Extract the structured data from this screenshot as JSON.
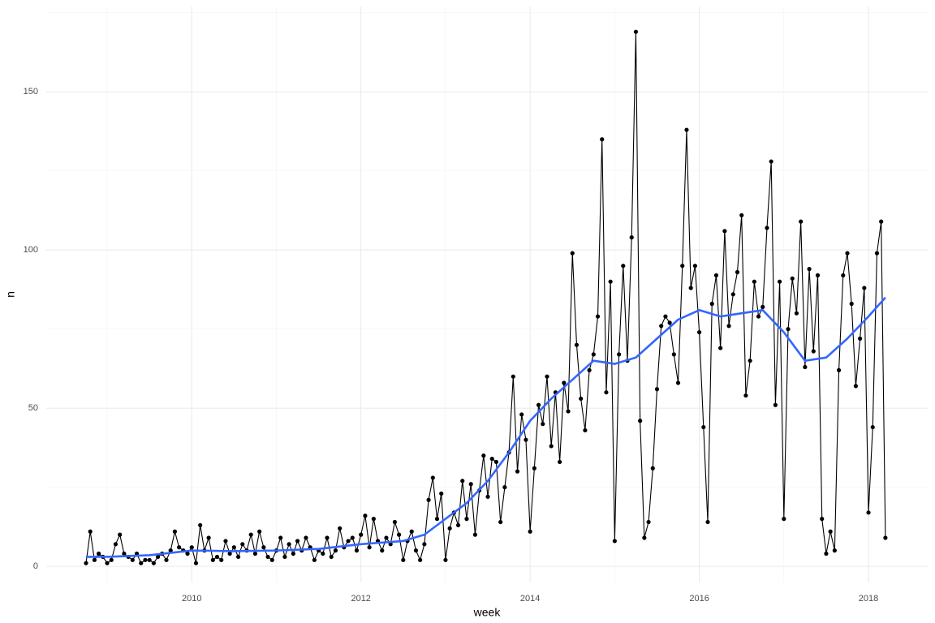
{
  "chart_data": {
    "type": "line",
    "x_label": "week",
    "y_label": "n",
    "xlim": [
      2008.28,
      2018.7
    ],
    "ylim": [
      -5.1,
      177
    ],
    "xticks": [
      2010,
      2012,
      2014,
      2016,
      2018
    ],
    "yticks": [
      0,
      50,
      100,
      150
    ],
    "grid": true,
    "minor_grid": true,
    "points": {
      "color": "#000000",
      "x": [
        2008.75,
        2008.8,
        2008.85,
        2008.9,
        2008.95,
        2009,
        2009.05,
        2009.1,
        2009.15,
        2009.2,
        2009.25,
        2009.3,
        2009.35,
        2009.4,
        2009.45,
        2009.5,
        2009.55,
        2009.6,
        2009.65,
        2009.7,
        2009.75,
        2009.8,
        2009.85,
        2009.9,
        2009.95,
        2010,
        2010.05,
        2010.1,
        2010.15,
        2010.2,
        2010.25,
        2010.3,
        2010.35,
        2010.4,
        2010.45,
        2010.5,
        2010.55,
        2010.6,
        2010.65,
        2010.7,
        2010.75,
        2010.8,
        2010.85,
        2010.9,
        2010.95,
        2011,
        2011.05,
        2011.1,
        2011.15,
        2011.2,
        2011.25,
        2011.3,
        2011.35,
        2011.4,
        2011.45,
        2011.5,
        2011.55,
        2011.6,
        2011.65,
        2011.7,
        2011.75,
        2011.8,
        2011.85,
        2011.9,
        2011.95,
        2012,
        2012.05,
        2012.1,
        2012.15,
        2012.2,
        2012.25,
        2012.3,
        2012.35,
        2012.4,
        2012.45,
        2012.5,
        2012.55,
        2012.6,
        2012.65,
        2012.7,
        2012.75,
        2012.8,
        2012.85,
        2012.9,
        2012.95,
        2013,
        2013.05,
        2013.1,
        2013.15,
        2013.2,
        2013.25,
        2013.3,
        2013.35,
        2013.4,
        2013.45,
        2013.5,
        2013.55,
        2013.6,
        2013.65,
        2013.7,
        2013.75,
        2013.8,
        2013.85,
        2013.9,
        2013.95,
        2014,
        2014.05,
        2014.1,
        2014.15,
        2014.2,
        2014.25,
        2014.3,
        2014.35,
        2014.4,
        2014.45,
        2014.5,
        2014.55,
        2014.6,
        2014.65,
        2014.7,
        2014.75,
        2014.8,
        2014.85,
        2014.9,
        2014.95,
        2015,
        2015.05,
        2015.1,
        2015.15,
        2015.2,
        2015.25,
        2015.3,
        2015.35,
        2015.4,
        2015.45,
        2015.5,
        2015.55,
        2015.6,
        2015.65,
        2015.7,
        2015.75,
        2015.8,
        2015.85,
        2015.9,
        2015.95,
        2016,
        2016.05,
        2016.1,
        2016.15,
        2016.2,
        2016.25,
        2016.3,
        2016.35,
        2016.4,
        2016.45,
        2016.5,
        2016.55,
        2016.6,
        2016.65,
        2016.7,
        2016.75,
        2016.8,
        2016.85,
        2016.9,
        2016.95,
        2017,
        2017.05,
        2017.1,
        2017.15,
        2017.2,
        2017.25,
        2017.3,
        2017.35,
        2017.4,
        2017.45,
        2017.5,
        2017.55,
        2017.6,
        2017.65,
        2017.7,
        2017.75,
        2017.8,
        2017.85,
        2017.9,
        2017.95,
        2018,
        2018.05,
        2018.1,
        2018.15,
        2018.2
      ],
      "values": [
        1,
        11,
        2,
        4,
        3,
        1,
        2,
        7,
        10,
        4,
        3,
        2,
        4,
        1,
        2,
        2,
        1,
        3,
        4,
        2,
        5,
        11,
        6,
        5,
        4,
        6,
        1,
        13,
        5,
        9,
        2,
        3,
        2,
        8,
        4,
        6,
        3,
        7,
        5,
        10,
        4,
        11,
        6,
        3,
        2,
        5,
        9,
        3,
        7,
        4,
        8,
        5,
        9,
        6,
        2,
        5,
        4,
        9,
        3,
        5,
        12,
        6,
        8,
        9,
        5,
        10,
        16,
        6,
        15,
        8,
        5,
        9,
        7,
        14,
        10,
        2,
        8,
        11,
        5,
        2,
        7,
        21,
        28,
        15,
        23,
        2,
        12,
        17,
        13,
        27,
        15,
        26,
        10,
        24,
        35,
        22,
        34,
        33,
        14,
        25,
        36,
        60,
        30,
        48,
        40,
        11,
        31,
        51,
        45,
        60,
        38,
        55,
        33,
        58,
        49,
        99,
        70,
        53,
        43,
        62,
        67,
        79,
        135,
        55,
        90,
        8,
        67,
        95,
        65,
        104,
        169,
        46,
        9,
        14,
        31,
        56,
        76,
        79,
        77,
        67,
        58,
        95,
        138,
        88,
        95,
        74,
        44,
        14,
        83,
        92,
        69,
        106,
        76,
        86,
        93,
        111,
        54,
        65,
        90,
        79,
        82,
        107,
        128,
        51,
        90,
        15,
        75,
        91,
        80,
        109,
        63,
        94,
        68,
        92,
        15,
        4,
        11,
        5,
        62,
        92,
        99,
        83,
        57,
        72,
        88,
        17,
        44,
        99,
        109,
        9
      ]
    },
    "smooth": {
      "color": "#3366ff",
      "x": [
        2008.75,
        2009,
        2009.5,
        2010,
        2010.5,
        2011,
        2011.5,
        2012,
        2012.5,
        2012.75,
        2013,
        2013.25,
        2013.5,
        2013.75,
        2014,
        2014.25,
        2014.5,
        2014.75,
        2015,
        2015.25,
        2015.5,
        2015.75,
        2016,
        2016.25,
        2016.5,
        2016.75,
        2017,
        2017.25,
        2017.5,
        2017.75,
        2018,
        2018.2
      ],
      "values": [
        3,
        3,
        3.5,
        5,
        4.8,
        5,
        5.5,
        7,
        8,
        10,
        15,
        20,
        27,
        36,
        46,
        53,
        59,
        65,
        64,
        66,
        72,
        78,
        81,
        79,
        80,
        81,
        74,
        65,
        66,
        72,
        79,
        85
      ]
    }
  }
}
